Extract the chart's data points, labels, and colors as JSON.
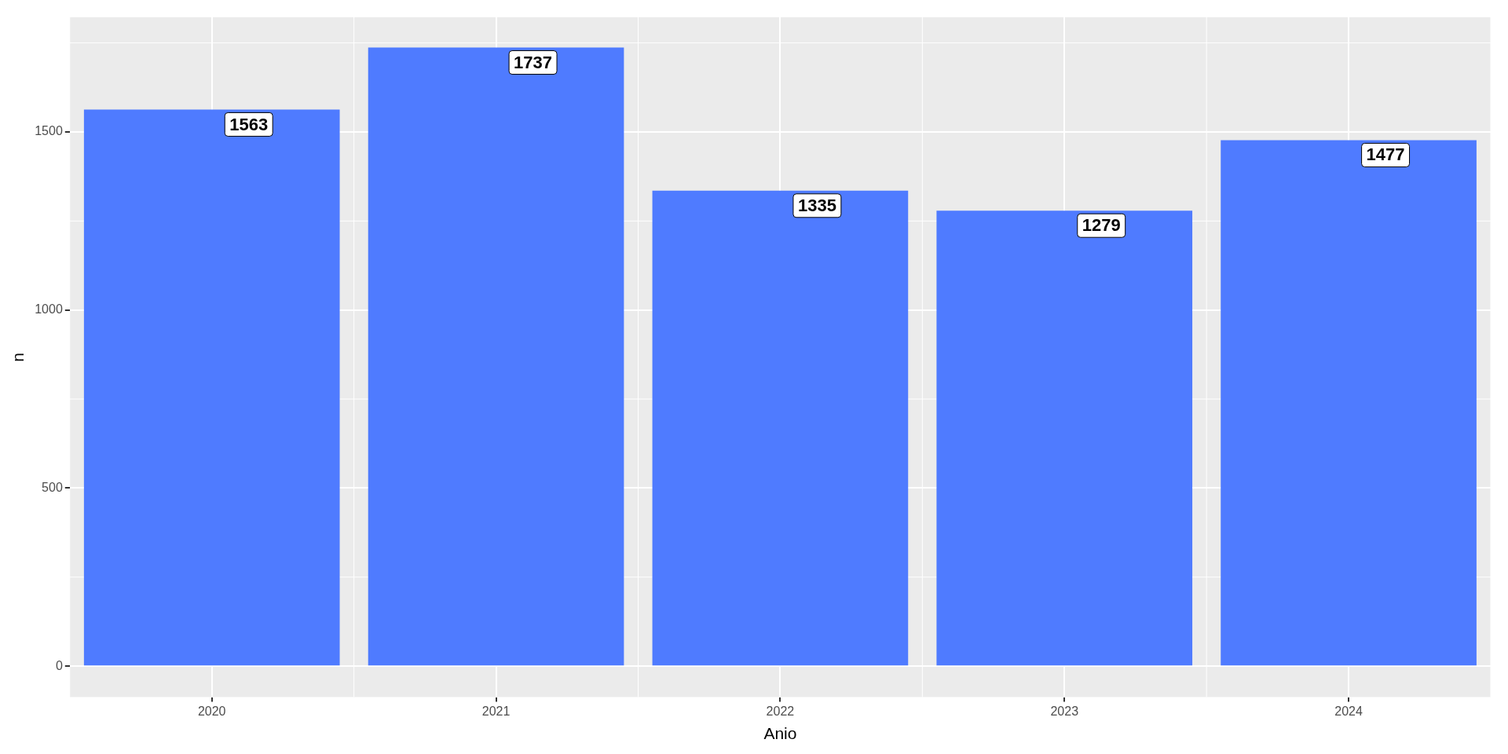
{
  "chart_data": {
    "type": "bar",
    "xlabel": "Anio",
    "ylabel": "n",
    "categories": [
      "2020",
      "2021",
      "2022",
      "2023",
      "2024"
    ],
    "values": [
      1563,
      1737,
      1335,
      1279,
      1477
    ],
    "color": "#4f7bff",
    "ylim": [
      -87,
      1822
    ],
    "yticks": [
      0,
      500,
      1000,
      1500
    ],
    "grid": true,
    "data_labels": true
  }
}
